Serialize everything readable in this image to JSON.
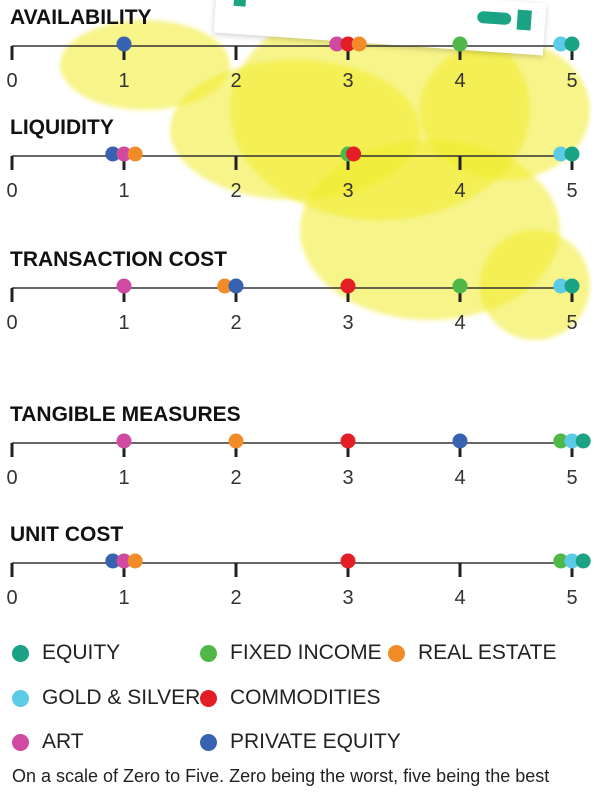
{
  "chart_data": {
    "type": "scatter",
    "note": "On a scale of Zero to Five. Zero being the worst, five being the best",
    "axis": {
      "min": 0,
      "max": 5,
      "ticks": [
        "0",
        "1",
        "2",
        "3",
        "4",
        "5"
      ]
    },
    "categories": [
      {
        "key": "equity",
        "name": "EQUITY",
        "color": "#1aa384"
      },
      {
        "key": "fixed_income",
        "name": "FIXED INCOME",
        "color": "#4fb848"
      },
      {
        "key": "real_estate",
        "name": "REAL ESTATE",
        "color": "#f28c28"
      },
      {
        "key": "gold_silver",
        "name": "GOLD & SILVER",
        "color": "#5ccbe6"
      },
      {
        "key": "commodities",
        "name": "COMMODITIES",
        "color": "#e31e24"
      },
      {
        "key": "art",
        "name": "ART",
        "color": "#cf4aa0"
      },
      {
        "key": "private_equity",
        "name": "PRIVATE EQUITY",
        "color": "#3762b0"
      }
    ],
    "scales": [
      {
        "title": "AVAILABILITY",
        "points": [
          {
            "category": "private_equity",
            "value": 1
          },
          {
            "category": "art",
            "value": 2.9
          },
          {
            "category": "commodities",
            "value": 3
          },
          {
            "category": "real_estate",
            "value": 3.1
          },
          {
            "category": "fixed_income",
            "value": 4
          },
          {
            "category": "gold_silver",
            "value": 4.9
          },
          {
            "category": "equity",
            "value": 5
          }
        ]
      },
      {
        "title": "LIQUIDITY",
        "points": [
          {
            "category": "private_equity",
            "value": 0.9
          },
          {
            "category": "art",
            "value": 1
          },
          {
            "category": "real_estate",
            "value": 1.1
          },
          {
            "category": "fixed_income",
            "value": 3
          },
          {
            "category": "commodities",
            "value": 3.05
          },
          {
            "category": "gold_silver",
            "value": 4.9
          },
          {
            "category": "equity",
            "value": 5
          }
        ]
      },
      {
        "title": "TRANSACTION COST",
        "points": [
          {
            "category": "art",
            "value": 1
          },
          {
            "category": "real_estate",
            "value": 1.9
          },
          {
            "category": "private_equity",
            "value": 2
          },
          {
            "category": "commodities",
            "value": 3
          },
          {
            "category": "fixed_income",
            "value": 4
          },
          {
            "category": "gold_silver",
            "value": 4.9
          },
          {
            "category": "equity",
            "value": 5
          }
        ]
      },
      {
        "title": "TANGIBLE MEASURES",
        "points": [
          {
            "category": "art",
            "value": 1
          },
          {
            "category": "real_estate",
            "value": 2
          },
          {
            "category": "commodities",
            "value": 3
          },
          {
            "category": "private_equity",
            "value": 4
          },
          {
            "category": "fixed_income",
            "value": 4.9
          },
          {
            "category": "gold_silver",
            "value": 5
          },
          {
            "category": "equity",
            "value": 5.1
          }
        ]
      },
      {
        "title": "UNIT COST",
        "points": [
          {
            "category": "private_equity",
            "value": 0.9
          },
          {
            "category": "art",
            "value": 1
          },
          {
            "category": "real_estate",
            "value": 1.1
          },
          {
            "category": "commodities",
            "value": 3
          },
          {
            "category": "fixed_income",
            "value": 4.9
          },
          {
            "category": "gold_silver",
            "value": 5
          },
          {
            "category": "equity",
            "value": 5.1
          }
        ]
      }
    ]
  }
}
